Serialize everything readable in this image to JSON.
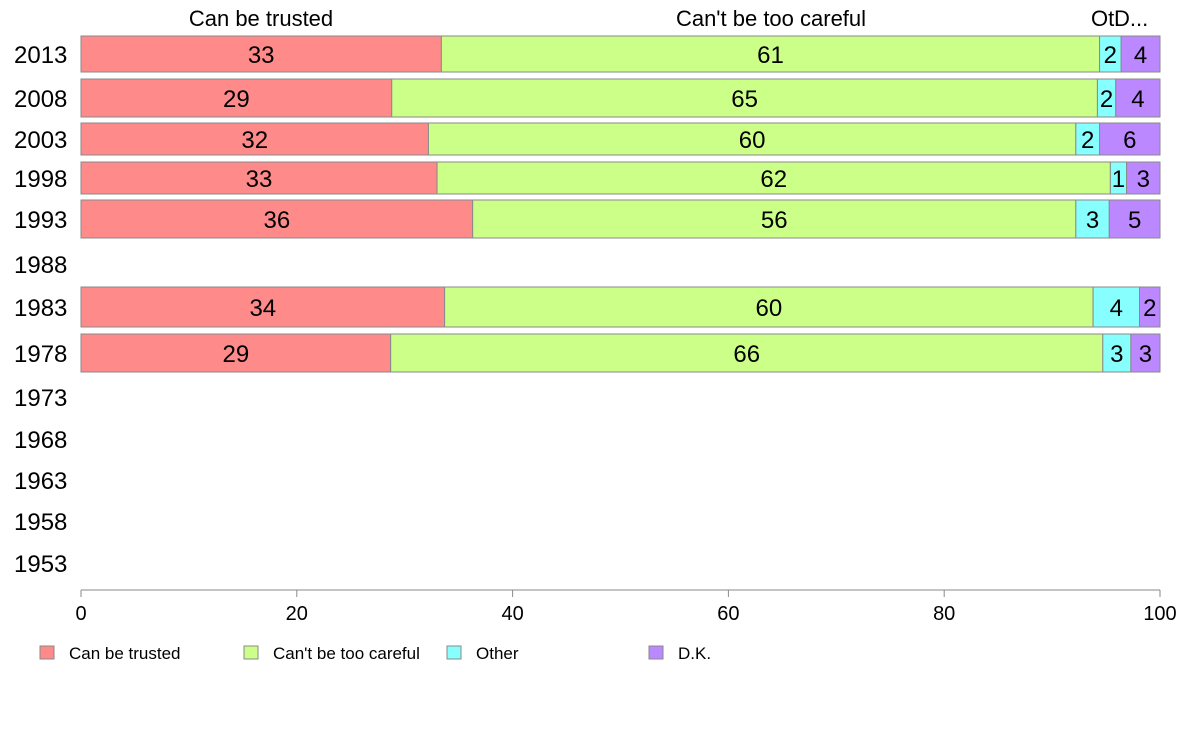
{
  "chart_data": {
    "type": "bar",
    "orientation": "horizontal",
    "stacked": true,
    "categories": [
      "2013",
      "2008",
      "2003",
      "1998",
      "1993",
      "1988",
      "1983",
      "1978",
      "1973",
      "1968",
      "1963",
      "1958",
      "1953"
    ],
    "series": [
      {
        "name": "Can be trusted",
        "top_label": "Can be trusted",
        "color": "#ff8a8a",
        "values": [
          33.4,
          28.8,
          32.2,
          33.0,
          36.3,
          null,
          33.7,
          28.7,
          null,
          null,
          null,
          null,
          null
        ],
        "labels": [
          "33",
          "29",
          "32",
          "33",
          "36",
          "",
          "34",
          "29",
          "",
          "",
          "",
          "",
          ""
        ]
      },
      {
        "name": "Can't be too careful",
        "top_label": "Can't be too careful",
        "color": "#ccff88",
        "values": [
          61.0,
          65.4,
          60.0,
          62.4,
          55.9,
          null,
          60.1,
          66.0,
          null,
          null,
          null,
          null,
          null
        ],
        "labels": [
          "61",
          "65",
          "60",
          "62",
          "56",
          "",
          "60",
          "66",
          "",
          "",
          "",
          "",
          ""
        ]
      },
      {
        "name": "Other",
        "top_label": "Ot.",
        "color": "#88ffff",
        "values": [
          2.0,
          1.7,
          2.2,
          1.5,
          3.1,
          null,
          4.3,
          2.6,
          null,
          null,
          null,
          null,
          null
        ],
        "labels": [
          "2",
          "2",
          "2",
          "1",
          "3",
          "",
          "4",
          "3",
          "",
          "",
          "",
          "",
          ""
        ]
      },
      {
        "name": "D.K.",
        "top_label": "D...",
        "color": "#bb88ff",
        "values": [
          3.6,
          4.1,
          5.6,
          3.1,
          4.7,
          null,
          1.9,
          2.7,
          null,
          null,
          null,
          null,
          null
        ],
        "labels": [
          "4",
          "4",
          "6",
          "3",
          "5",
          "",
          "2",
          "3",
          "",
          "",
          "",
          "",
          ""
        ]
      }
    ],
    "xlim": [
      0,
      100
    ],
    "xticks": [
      "0",
      "20",
      "40",
      "60",
      "80",
      "100"
    ],
    "legend_position": "bottom",
    "grid": false
  }
}
